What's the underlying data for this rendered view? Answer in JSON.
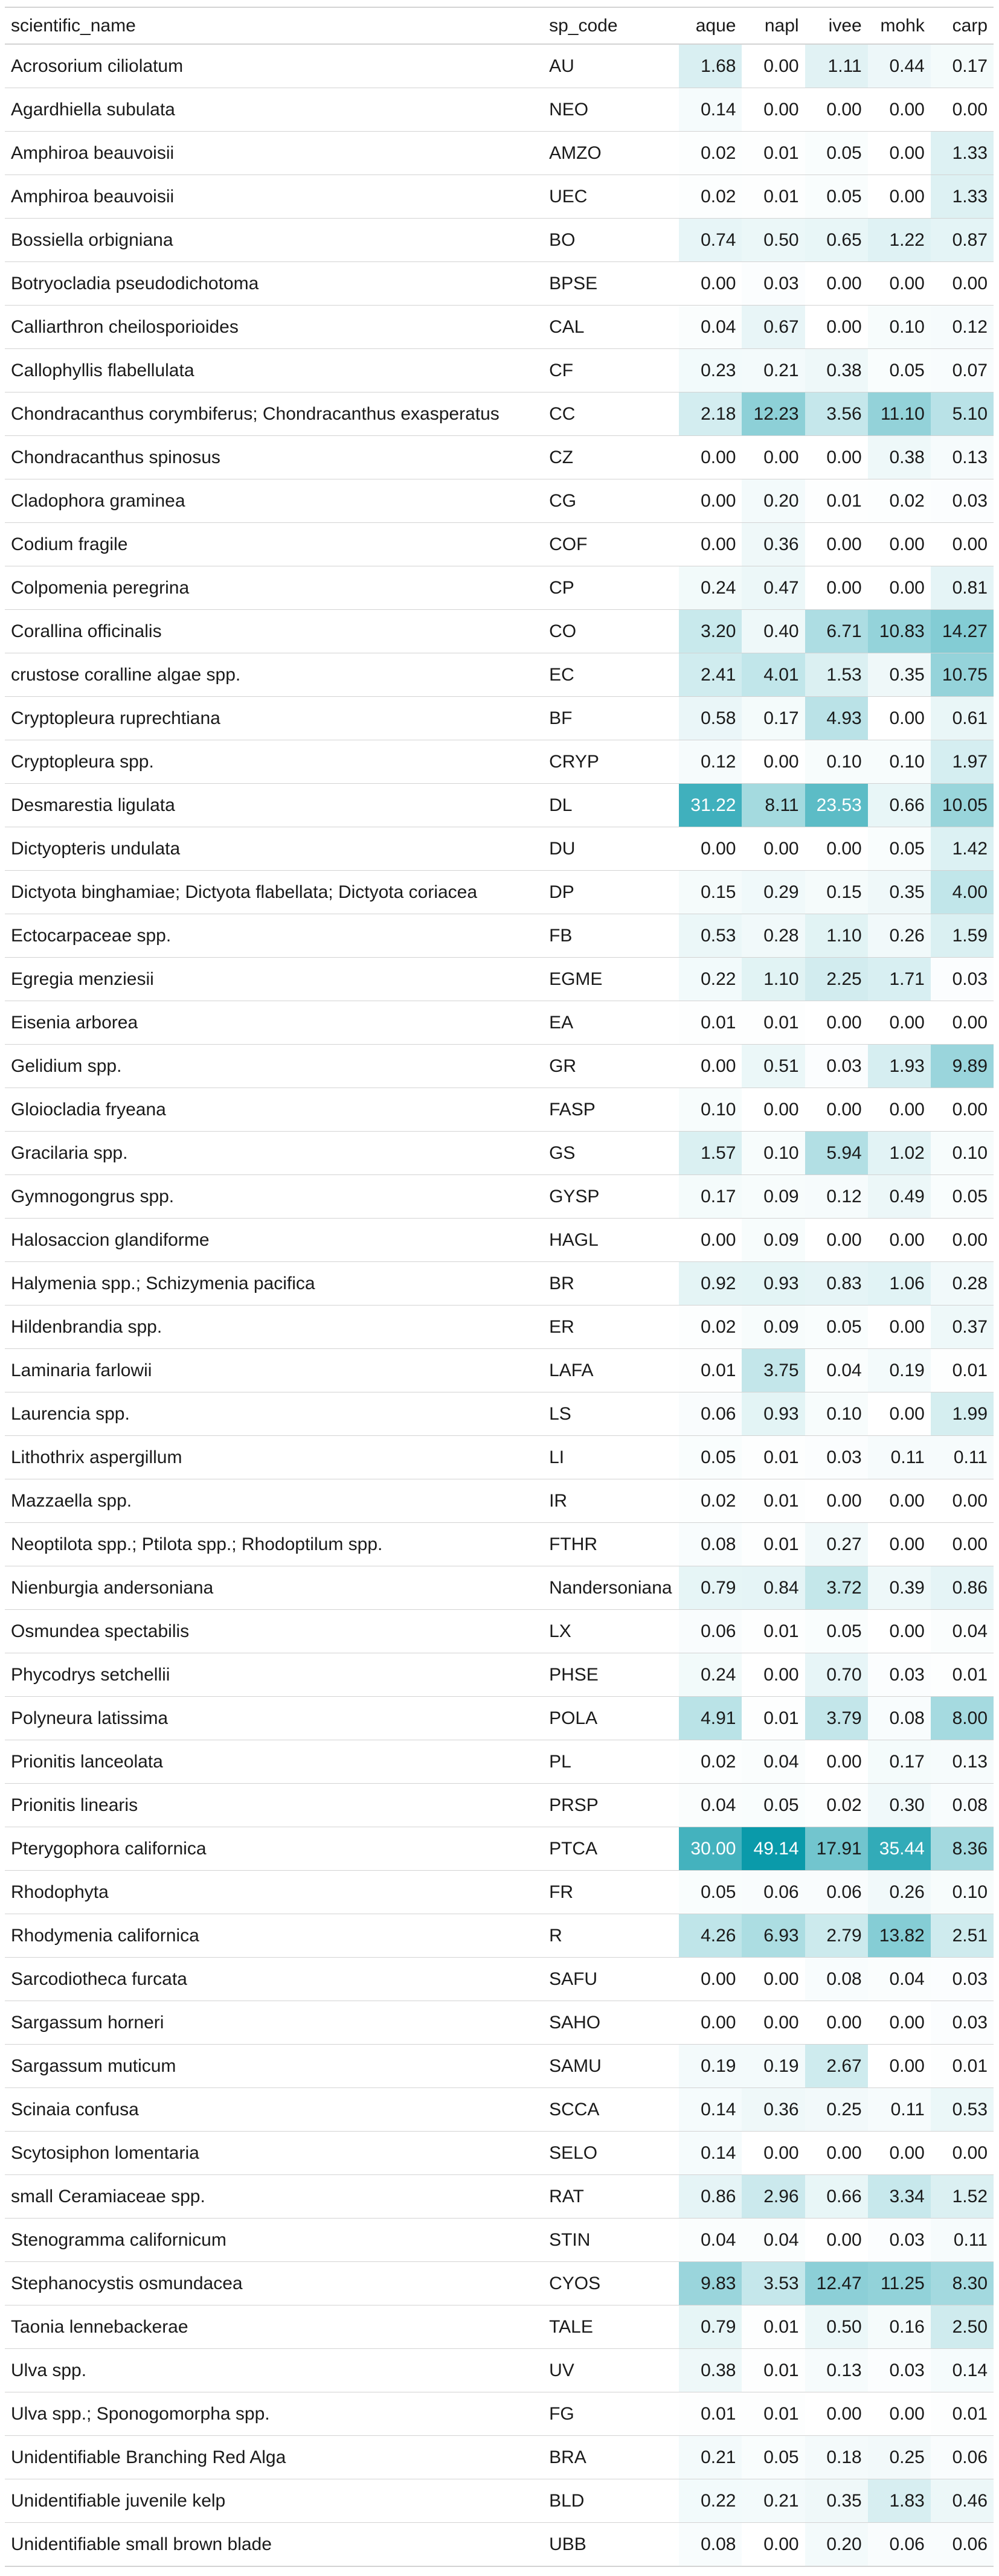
{
  "table": {
    "columns": {
      "name": "scientific_name",
      "code": "sp_code",
      "aque": "aque",
      "napl": "napl",
      "ivee": "ivee",
      "mohk": "mohk",
      "carp": "carp"
    },
    "heat_colors": {
      "low": "#ffffff",
      "high": "#0a9aaa",
      "max_value": 49.14
    },
    "rows": [
      {
        "name": "Acrosorium ciliolatum",
        "code": "AU",
        "aque": "1.68",
        "napl": "0.00",
        "ivee": "1.11",
        "mohk": "0.44",
        "carp": "0.17"
      },
      {
        "name": "Agardhiella subulata",
        "code": "NEO",
        "aque": "0.14",
        "napl": "0.00",
        "ivee": "0.00",
        "mohk": "0.00",
        "carp": "0.00"
      },
      {
        "name": "Amphiroa beauvoisii",
        "code": "AMZO",
        "aque": "0.02",
        "napl": "0.01",
        "ivee": "0.05",
        "mohk": "0.00",
        "carp": "1.33"
      },
      {
        "name": "Amphiroa beauvoisii",
        "code": "UEC",
        "aque": "0.02",
        "napl": "0.01",
        "ivee": "0.05",
        "mohk": "0.00",
        "carp": "1.33"
      },
      {
        "name": "Bossiella orbigniana",
        "code": "BO",
        "aque": "0.74",
        "napl": "0.50",
        "ivee": "0.65",
        "mohk": "1.22",
        "carp": "0.87"
      },
      {
        "name": "Botryocladia pseudodichotoma",
        "code": "BPSE",
        "aque": "0.00",
        "napl": "0.03",
        "ivee": "0.00",
        "mohk": "0.00",
        "carp": "0.00"
      },
      {
        "name": "Calliarthron cheilosporioides",
        "code": "CAL",
        "aque": "0.04",
        "napl": "0.67",
        "ivee": "0.00",
        "mohk": "0.10",
        "carp": "0.12"
      },
      {
        "name": "Callophyllis flabellulata",
        "code": "CF",
        "aque": "0.23",
        "napl": "0.21",
        "ivee": "0.38",
        "mohk": "0.05",
        "carp": "0.07"
      },
      {
        "name": "Chondracanthus corymbiferus; Chondracanthus exasperatus",
        "code": "CC",
        "aque": "2.18",
        "napl": "12.23",
        "ivee": "3.56",
        "mohk": "11.10",
        "carp": "5.10"
      },
      {
        "name": "Chondracanthus spinosus",
        "code": "CZ",
        "aque": "0.00",
        "napl": "0.00",
        "ivee": "0.00",
        "mohk": "0.38",
        "carp": "0.13"
      },
      {
        "name": "Cladophora graminea",
        "code": "CG",
        "aque": "0.00",
        "napl": "0.20",
        "ivee": "0.01",
        "mohk": "0.02",
        "carp": "0.03"
      },
      {
        "name": "Codium fragile",
        "code": "COF",
        "aque": "0.00",
        "napl": "0.36",
        "ivee": "0.00",
        "mohk": "0.00",
        "carp": "0.00"
      },
      {
        "name": "Colpomenia peregrina",
        "code": "CP",
        "aque": "0.24",
        "napl": "0.47",
        "ivee": "0.00",
        "mohk": "0.00",
        "carp": "0.81"
      },
      {
        "name": "Corallina officinalis",
        "code": "CO",
        "aque": "3.20",
        "napl": "0.40",
        "ivee": "6.71",
        "mohk": "10.83",
        "carp": "14.27"
      },
      {
        "name": "crustose coralline algae spp.",
        "code": "EC",
        "aque": "2.41",
        "napl": "4.01",
        "ivee": "1.53",
        "mohk": "0.35",
        "carp": "10.75"
      },
      {
        "name": "Cryptopleura ruprechtiana",
        "code": "BF",
        "aque": "0.58",
        "napl": "0.17",
        "ivee": "4.93",
        "mohk": "0.00",
        "carp": "0.61"
      },
      {
        "name": "Cryptopleura spp.",
        "code": "CRYP",
        "aque": "0.12",
        "napl": "0.00",
        "ivee": "0.10",
        "mohk": "0.10",
        "carp": "1.97"
      },
      {
        "name": "Desmarestia ligulata",
        "code": "DL",
        "aque": "31.22",
        "napl": "8.11",
        "ivee": "23.53",
        "mohk": "0.66",
        "carp": "10.05"
      },
      {
        "name": "Dictyopteris undulata",
        "code": "DU",
        "aque": "0.00",
        "napl": "0.00",
        "ivee": "0.00",
        "mohk": "0.05",
        "carp": "1.42"
      },
      {
        "name": "Dictyota binghamiae; Dictyota flabellata; Dictyota coriacea",
        "code": "DP",
        "aque": "0.15",
        "napl": "0.29",
        "ivee": "0.15",
        "mohk": "0.35",
        "carp": "4.00"
      },
      {
        "name": "Ectocarpaceae spp.",
        "code": "FB",
        "aque": "0.53",
        "napl": "0.28",
        "ivee": "1.10",
        "mohk": "0.26",
        "carp": "1.59"
      },
      {
        "name": "Egregia menziesii",
        "code": "EGME",
        "aque": "0.22",
        "napl": "1.10",
        "ivee": "2.25",
        "mohk": "1.71",
        "carp": "0.03"
      },
      {
        "name": "Eisenia arborea",
        "code": "EA",
        "aque": "0.01",
        "napl": "0.01",
        "ivee": "0.00",
        "mohk": "0.00",
        "carp": "0.00"
      },
      {
        "name": "Gelidium spp.",
        "code": "GR",
        "aque": "0.00",
        "napl": "0.51",
        "ivee": "0.03",
        "mohk": "1.93",
        "carp": "9.89"
      },
      {
        "name": "Gloiocladia fryeana",
        "code": "FASP",
        "aque": "0.10",
        "napl": "0.00",
        "ivee": "0.00",
        "mohk": "0.00",
        "carp": "0.00"
      },
      {
        "name": "Gracilaria spp.",
        "code": "GS",
        "aque": "1.57",
        "napl": "0.10",
        "ivee": "5.94",
        "mohk": "1.02",
        "carp": "0.10"
      },
      {
        "name": "Gymnogongrus spp.",
        "code": "GYSP",
        "aque": "0.17",
        "napl": "0.09",
        "ivee": "0.12",
        "mohk": "0.49",
        "carp": "0.05"
      },
      {
        "name": "Halosaccion glandiforme",
        "code": "HAGL",
        "aque": "0.00",
        "napl": "0.09",
        "ivee": "0.00",
        "mohk": "0.00",
        "carp": "0.00"
      },
      {
        "name": "Halymenia spp.; Schizymenia pacifica",
        "code": "BR",
        "aque": "0.92",
        "napl": "0.93",
        "ivee": "0.83",
        "mohk": "1.06",
        "carp": "0.28"
      },
      {
        "name": "Hildenbrandia spp.",
        "code": "ER",
        "aque": "0.02",
        "napl": "0.09",
        "ivee": "0.05",
        "mohk": "0.00",
        "carp": "0.37"
      },
      {
        "name": "Laminaria farlowii",
        "code": "LAFA",
        "aque": "0.01",
        "napl": "3.75",
        "ivee": "0.04",
        "mohk": "0.19",
        "carp": "0.01"
      },
      {
        "name": "Laurencia spp.",
        "code": "LS",
        "aque": "0.06",
        "napl": "0.93",
        "ivee": "0.10",
        "mohk": "0.00",
        "carp": "1.99"
      },
      {
        "name": "Lithothrix aspergillum",
        "code": "LI",
        "aque": "0.05",
        "napl": "0.01",
        "ivee": "0.03",
        "mohk": "0.11",
        "carp": "0.11"
      },
      {
        "name": "Mazzaella spp.",
        "code": "IR",
        "aque": "0.02",
        "napl": "0.01",
        "ivee": "0.00",
        "mohk": "0.00",
        "carp": "0.00"
      },
      {
        "name": "Neoptilota spp.; Ptilota spp.; Rhodoptilum spp.",
        "code": "FTHR",
        "aque": "0.08",
        "napl": "0.01",
        "ivee": "0.27",
        "mohk": "0.00",
        "carp": "0.00"
      },
      {
        "name": "Nienburgia andersoniana",
        "code": "Nandersoniana",
        "aque": "0.79",
        "napl": "0.84",
        "ivee": "3.72",
        "mohk": "0.39",
        "carp": "0.86"
      },
      {
        "name": "Osmundea spectabilis",
        "code": "LX",
        "aque": "0.06",
        "napl": "0.01",
        "ivee": "0.05",
        "mohk": "0.00",
        "carp": "0.04"
      },
      {
        "name": "Phycodrys setchellii",
        "code": "PHSE",
        "aque": "0.24",
        "napl": "0.00",
        "ivee": "0.70",
        "mohk": "0.03",
        "carp": "0.01"
      },
      {
        "name": "Polyneura latissima",
        "code": "POLA",
        "aque": "4.91",
        "napl": "0.01",
        "ivee": "3.79",
        "mohk": "0.08",
        "carp": "8.00"
      },
      {
        "name": "Prionitis lanceolata",
        "code": "PL",
        "aque": "0.02",
        "napl": "0.04",
        "ivee": "0.00",
        "mohk": "0.17",
        "carp": "0.13"
      },
      {
        "name": "Prionitis linearis",
        "code": "PRSP",
        "aque": "0.04",
        "napl": "0.05",
        "ivee": "0.02",
        "mohk": "0.30",
        "carp": "0.08"
      },
      {
        "name": "Pterygophora californica",
        "code": "PTCA",
        "aque": "30.00",
        "napl": "49.14",
        "ivee": "17.91",
        "mohk": "35.44",
        "carp": "8.36"
      },
      {
        "name": "Rhodophyta",
        "code": "FR",
        "aque": "0.05",
        "napl": "0.06",
        "ivee": "0.06",
        "mohk": "0.26",
        "carp": "0.10"
      },
      {
        "name": "Rhodymenia californica",
        "code": "R",
        "aque": "4.26",
        "napl": "6.93",
        "ivee": "2.79",
        "mohk": "13.82",
        "carp": "2.51"
      },
      {
        "name": "Sarcodiotheca furcata",
        "code": "SAFU",
        "aque": "0.00",
        "napl": "0.00",
        "ivee": "0.08",
        "mohk": "0.04",
        "carp": "0.03"
      },
      {
        "name": "Sargassum horneri",
        "code": "SAHO",
        "aque": "0.00",
        "napl": "0.00",
        "ivee": "0.00",
        "mohk": "0.00",
        "carp": "0.03"
      },
      {
        "name": "Sargassum muticum",
        "code": "SAMU",
        "aque": "0.19",
        "napl": "0.19",
        "ivee": "2.67",
        "mohk": "0.00",
        "carp": "0.01"
      },
      {
        "name": "Scinaia confusa",
        "code": "SCCA",
        "aque": "0.14",
        "napl": "0.36",
        "ivee": "0.25",
        "mohk": "0.11",
        "carp": "0.53"
      },
      {
        "name": "Scytosiphon lomentaria",
        "code": "SELO",
        "aque": "0.14",
        "napl": "0.00",
        "ivee": "0.00",
        "mohk": "0.00",
        "carp": "0.00"
      },
      {
        "name": "small Ceramiaceae spp.",
        "code": "RAT",
        "aque": "0.86",
        "napl": "2.96",
        "ivee": "0.66",
        "mohk": "3.34",
        "carp": "1.52"
      },
      {
        "name": "Stenogramma californicum",
        "code": "STIN",
        "aque": "0.04",
        "napl": "0.04",
        "ivee": "0.00",
        "mohk": "0.03",
        "carp": "0.11"
      },
      {
        "name": "Stephanocystis osmundacea",
        "code": "CYOS",
        "aque": "9.83",
        "napl": "3.53",
        "ivee": "12.47",
        "mohk": "11.25",
        "carp": "8.30"
      },
      {
        "name": "Taonia lennebackerae",
        "code": "TALE",
        "aque": "0.79",
        "napl": "0.01",
        "ivee": "0.50",
        "mohk": "0.16",
        "carp": "2.50"
      },
      {
        "name": "Ulva spp.",
        "code": "UV",
        "aque": "0.38",
        "napl": "0.01",
        "ivee": "0.13",
        "mohk": "0.03",
        "carp": "0.14"
      },
      {
        "name": "Ulva spp.; Sponogomorpha spp.",
        "code": "FG",
        "aque": "0.01",
        "napl": "0.01",
        "ivee": "0.00",
        "mohk": "0.00",
        "carp": "0.01"
      },
      {
        "name": "Unidentifiable Branching Red Alga",
        "code": "BRA",
        "aque": "0.21",
        "napl": "0.05",
        "ivee": "0.18",
        "mohk": "0.25",
        "carp": "0.06"
      },
      {
        "name": "Unidentifiable juvenile kelp",
        "code": "BLD",
        "aque": "0.22",
        "napl": "0.21",
        "ivee": "0.35",
        "mohk": "1.83",
        "carp": "0.46"
      },
      {
        "name": "Unidentifiable small brown blade",
        "code": "UBB",
        "aque": "0.08",
        "napl": "0.00",
        "ivee": "0.20",
        "mohk": "0.06",
        "carp": "0.06"
      }
    ]
  }
}
